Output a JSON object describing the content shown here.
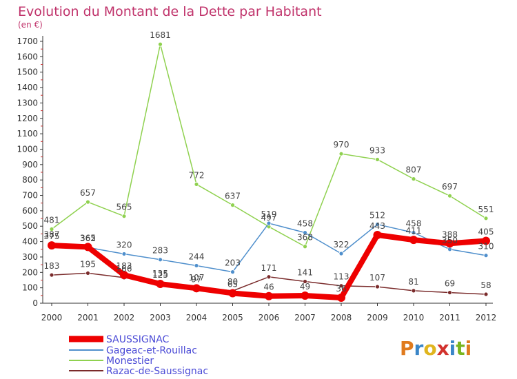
{
  "chart_data": {
    "type": "line",
    "title": "Evolution du Montant de la Dette par Habitant",
    "subtitle": "(en €)",
    "categories": [
      "2000",
      "2001",
      "2002",
      "2003",
      "2004",
      "2005",
      "2006",
      "2007",
      "2008",
      "2009",
      "2010",
      "2011",
      "2012"
    ],
    "ylim": [
      0,
      1700
    ],
    "yticks": [
      0,
      100,
      200,
      300,
      400,
      500,
      600,
      700,
      800,
      900,
      1000,
      1100,
      1200,
      1300,
      1400,
      1500,
      1600,
      1700
    ],
    "grid": false,
    "legend_position": "bottom-left",
    "series": [
      {
        "name": "SAUSSIGNAC",
        "color": "#ee0000",
        "values": [
          375,
          365,
          183,
          125,
          97,
          65,
          46,
          49,
          36,
          443,
          411,
          388,
          405
        ]
      },
      {
        "name": "Gageac-et-Rouillac",
        "color": "#4f8fcc",
        "values": [
          387,
          362,
          320,
          283,
          244,
          203,
          519,
          458,
          322,
          512,
          458,
          350,
          310
        ]
      },
      {
        "name": "Monestier",
        "color": "#8fd14f",
        "values": [
          481,
          657,
          565,
          1681,
          772,
          637,
          497,
          368,
          970,
          933,
          807,
          697,
          551
        ]
      },
      {
        "name": "Razac-de-Saussignac",
        "color": "#7a2b2b",
        "values": [
          183,
          195,
          166,
          135,
          107,
          80,
          171,
          141,
          113,
          107,
          81,
          69,
          58
        ]
      }
    ]
  },
  "logo": {
    "text": "Proxiti",
    "letters": [
      "P",
      "r",
      "o",
      "x",
      "i",
      "t",
      "i"
    ]
  }
}
